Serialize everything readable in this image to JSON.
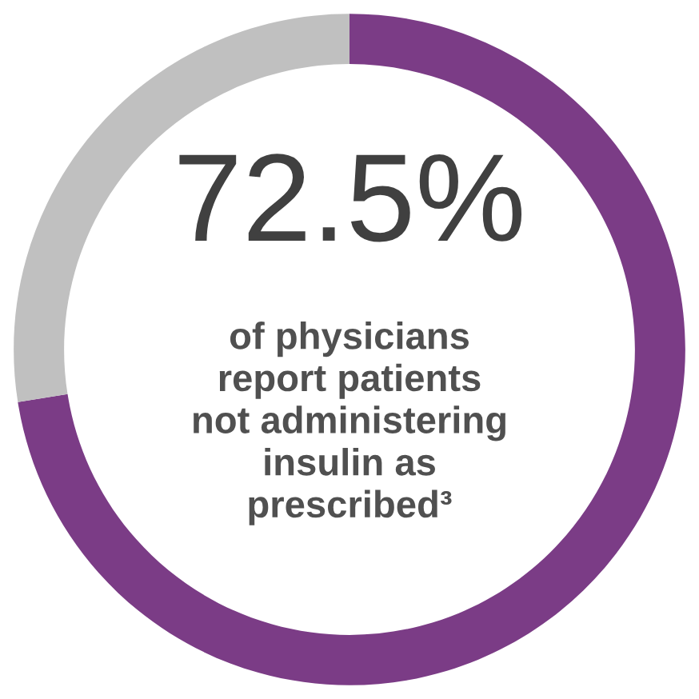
{
  "chart_data": {
    "type": "donut",
    "categories": [
      null,
      null
    ],
    "values": [
      72.5,
      27.5
    ],
    "colors": [
      "#7b3c86",
      "#c0c0c0"
    ],
    "value_labels": [
      "72.5%",
      null
    ],
    "annotations": [
      "of physicians\nreport patients\nnot administering\ninsulin as\nprescribed³"
    ]
  }
}
